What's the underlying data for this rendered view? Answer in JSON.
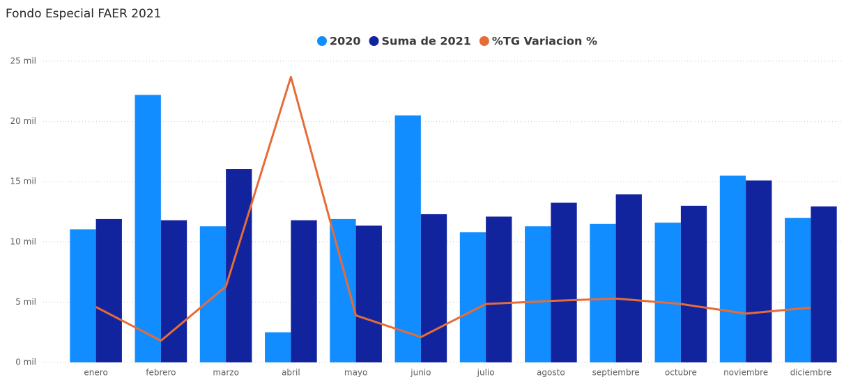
{
  "chart_data": {
    "type": "bar",
    "title": "Fondo Especial FAER 2021",
    "categories": [
      "enero",
      "febrero",
      "marzo",
      "abril",
      "mayo",
      "junio",
      "julio",
      "agosto",
      "septiembre",
      "octubre",
      "noviembre",
      "diciembre"
    ],
    "series": [
      {
        "name": "2020",
        "color": "#118dff",
        "type": "bar",
        "values": [
          11.05,
          22.2,
          11.3,
          2.5,
          11.9,
          20.5,
          10.8,
          11.3,
          11.5,
          11.6,
          15.5,
          12.0
        ]
      },
      {
        "name": "Suma de 2021",
        "color": "#12239e",
        "type": "bar",
        "values": [
          11.9,
          11.8,
          16.05,
          11.8,
          11.35,
          12.3,
          12.1,
          13.25,
          13.95,
          13.0,
          15.1,
          12.95
        ]
      },
      {
        "name": "%TG Variacion %",
        "color": "#e66c37",
        "type": "line",
        "values": [
          4.6,
          1.8,
          6.3,
          23.7,
          3.9,
          2.1,
          4.85,
          5.1,
          5.3,
          4.85,
          4.05,
          4.55
        ]
      }
    ],
    "ylim": [
      0,
      25
    ],
    "yticks": [
      {
        "value": 0,
        "label": "0 mil"
      },
      {
        "value": 5,
        "label": "5 mil"
      },
      {
        "value": 10,
        "label": "10 mil"
      },
      {
        "value": 15,
        "label": "15 mil"
      },
      {
        "value": 20,
        "label": "20 mil"
      },
      {
        "value": 25,
        "label": "25 mil"
      }
    ],
    "grid": true,
    "legend": "top"
  }
}
